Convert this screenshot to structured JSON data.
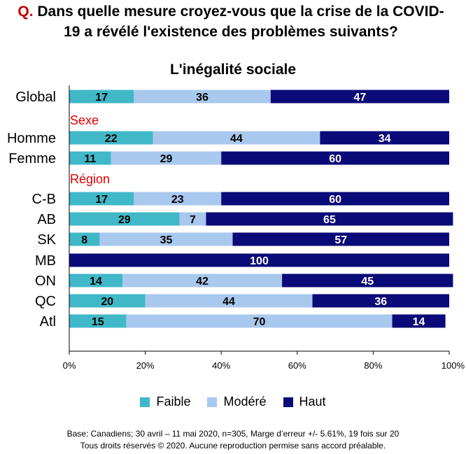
{
  "question": {
    "prefix": "Q.",
    "text_line1": "Dans quelle mesure croyez-vous que la crise de la COVID-",
    "text_line2": "19 a révélé l'existence des problèmes suivants?"
  },
  "colors": {
    "faible": "#40b8c8",
    "modere": "#a9c8ee",
    "haut": "#0a0a78",
    "section_label": "#e00000"
  },
  "chart_data": {
    "type": "bar",
    "orientation": "horizontal",
    "stacked": true,
    "title": "L'inégalité sociale",
    "categories": [
      "Global",
      "Homme",
      "Femme",
      "C-B",
      "AB",
      "SK",
      "MB",
      "ON",
      "QC",
      "Atl"
    ],
    "section_labels": [
      {
        "label": "Sexe",
        "before": "Homme"
      },
      {
        "label": "Région",
        "before": "C-B"
      }
    ],
    "series": [
      {
        "name": "Faible",
        "values": [
          17,
          22,
          11,
          17,
          29,
          8,
          0,
          14,
          20,
          15
        ]
      },
      {
        "name": "Modéré",
        "values": [
          36,
          44,
          29,
          23,
          7,
          35,
          0,
          42,
          44,
          70
        ]
      },
      {
        "name": "Haut",
        "values": [
          47,
          34,
          60,
          60,
          65,
          57,
          100,
          45,
          36,
          14
        ]
      }
    ],
    "xlim": [
      0,
      100
    ],
    "xticks": [
      "0%",
      "20%",
      "40%",
      "60%",
      "80%",
      "100%"
    ],
    "legend_position": "bottom",
    "grid": false
  },
  "footer": {
    "line1": "Base: Canadiens; 30 avril – 11 mai 2020, n=305, Marge d’erreur +/- 5.61%, 19 fois sur 20",
    "line2": "Tous droits réservés © 2020. Aucune reproduction permise sans accord préalable."
  }
}
